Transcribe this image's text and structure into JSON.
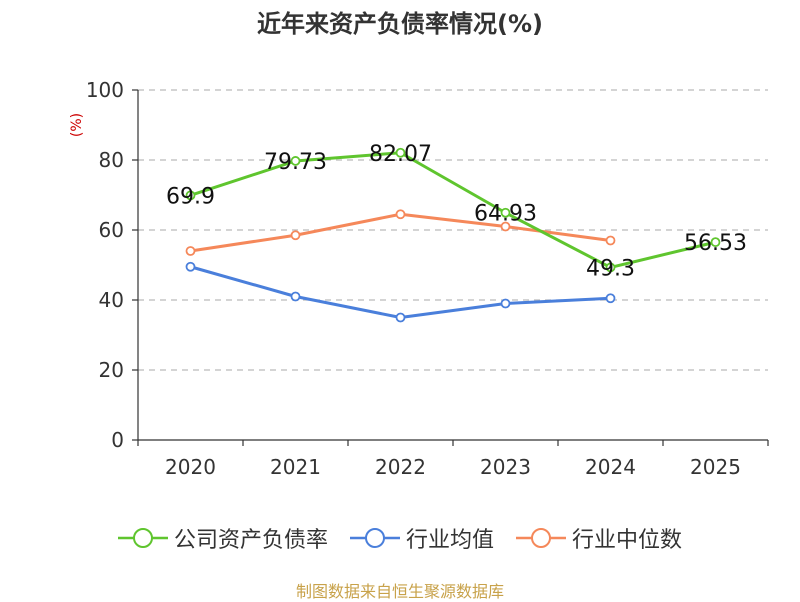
{
  "title": "近年来资产负债率情况(%)",
  "footer": "制图数据来自恒生聚源数据库",
  "colors": {
    "company": "#5fc52e",
    "avg": "#4a7fdb",
    "median": "#f5885a",
    "grid": "#bbbbbb",
    "axis": "#333333"
  },
  "chart_data": {
    "type": "line",
    "categories": [
      "2020",
      "2021",
      "2022",
      "2023",
      "2024",
      "2025"
    ],
    "ylabel": "(%)",
    "ylim": [
      0,
      100
    ],
    "yticks": [
      0,
      20,
      40,
      60,
      80,
      100
    ],
    "grid": true,
    "legend_position": "bottom",
    "series": [
      {
        "name": "公司资产负债率",
        "color": "#5fc52e",
        "values": [
          69.9,
          79.73,
          82.07,
          64.93,
          49.3,
          56.53
        ],
        "labels": [
          "69.9",
          "79.73",
          "82.07",
          "64.93",
          "49.3",
          "56.53"
        ]
      },
      {
        "name": "行业均值",
        "color": "#4a7fdb",
        "values": [
          49.5,
          41,
          35,
          39,
          40.5,
          null
        ]
      },
      {
        "name": "行业中位数",
        "color": "#f5885a",
        "values": [
          54,
          58.5,
          64.5,
          61,
          57,
          null
        ]
      }
    ]
  }
}
